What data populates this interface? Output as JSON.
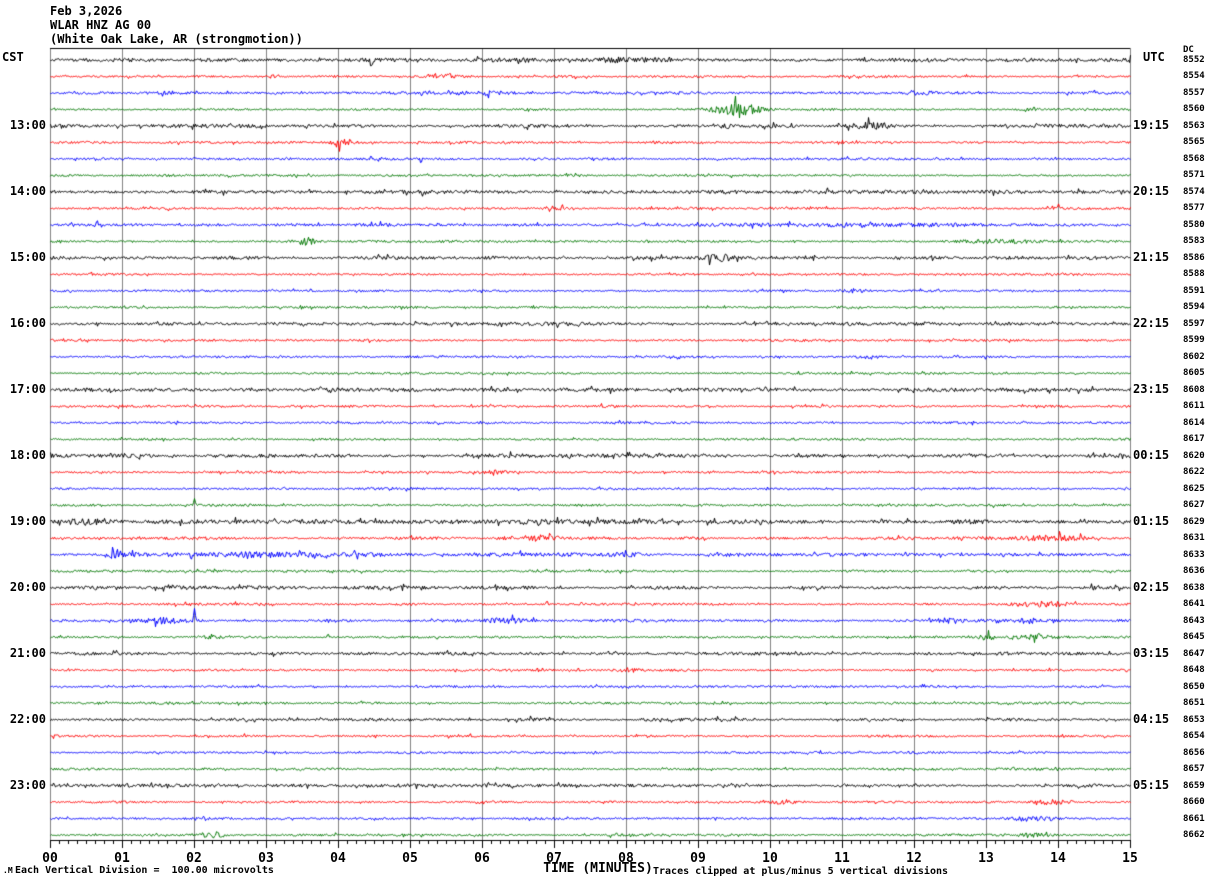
{
  "title": {
    "date": "Feb 3,2026",
    "station": "WLAR HNZ AG 00",
    "location": "(White Oak Lake, AR (strongmotion))"
  },
  "left_axis": {
    "timezone": "CST",
    "hours": [
      "13:00",
      "14:00",
      "15:00",
      "16:00",
      "17:00",
      "18:00",
      "19:00",
      "20:00",
      "21:00",
      "22:00",
      "23:00"
    ]
  },
  "right_axis": {
    "timezone": "UTC",
    "dc_label": "DC",
    "hours": [
      "19:15",
      "20:15",
      "21:15",
      "22:15",
      "23:15",
      "00:15",
      "01:15",
      "02:15",
      "03:15",
      "04:15",
      "05:15"
    ],
    "row_numbers": [
      "8552",
      "8554",
      "8557",
      "8560",
      "8563",
      "8565",
      "8568",
      "8571",
      "8574",
      "8577",
      "8580",
      "8583",
      "8586",
      "8588",
      "8591",
      "8594",
      "8597",
      "8599",
      "8602",
      "8605",
      "8608",
      "8611",
      "8614",
      "8617",
      "8620",
      "8622",
      "8625",
      "8627",
      "8629",
      "8631",
      "8633",
      "8636",
      "8638",
      "8641",
      "8643",
      "8645",
      "8647",
      "8648",
      "8650",
      "8651",
      "8653",
      "8654",
      "8656",
      "8657",
      "8659",
      "8660",
      "8661",
      "8662"
    ],
    "first_hour_label_row": 4,
    "rows_per_hour": 4
  },
  "x_axis": {
    "labels": [
      "00",
      "01",
      "02",
      "03",
      "04",
      "05",
      "06",
      "07",
      "08",
      "09",
      "10",
      "11",
      "12",
      "13",
      "14",
      "15"
    ],
    "title": "TIME (MINUTES)"
  },
  "footer": {
    "corner_mark": ".M",
    "scale_note": "Each Vertical Division =  100.00 microvolts",
    "clip_note": "Traces clipped at plus/minus 5 vertical divisions"
  },
  "chart_data": {
    "type": "line",
    "title": "WLAR HNZ AG 00 helicorder, Feb 3,2026, White Oak Lake, AR (strongmotion)",
    "rows": 48,
    "minutes_per_row": 15,
    "row_interval_minutes": 15,
    "x_tick_subdivisions_per_minute": 8,
    "first_row_time_cst": "12:00",
    "last_row_time_cst": "23:45",
    "trace_color_cycle": [
      "#000000",
      "#ff0000",
      "#0000ff",
      "#007700"
    ],
    "grid_color": "#808080",
    "clip_divisions": 5,
    "microvolts_per_division": 100.0,
    "default_amp": {
      "black": 1.3,
      "colored": 0.9
    },
    "row_amp_overrides": {
      "0": 1.8,
      "2": 1.2,
      "4": 1.4,
      "8": 1.4,
      "10": 1.3,
      "12": 1.3,
      "16": 1.3,
      "20": 1.6,
      "21": 1.1,
      "24": 1.5,
      "28": 1.8,
      "29": 1.2,
      "30": 1.5,
      "32": 1.4,
      "34": 1.2,
      "36": 1.3,
      "40": 1.2,
      "44": 1.3
    },
    "events": [
      {
        "row": 0,
        "type": "spike",
        "minute": 4.45,
        "amp": -14
      },
      {
        "row": 0,
        "type": "burst",
        "minute": 7.8,
        "duration": 0.8,
        "amp": 1.5
      },
      {
        "row": 1,
        "type": "burst",
        "minute": 3.1,
        "duration": 0.3,
        "amp": 1.5
      },
      {
        "row": 1,
        "type": "burst",
        "minute": 5.5,
        "duration": 0.7,
        "amp": 2
      },
      {
        "row": 1,
        "type": "spike",
        "minute": 5.55,
        "amp": 8
      },
      {
        "row": 2,
        "type": "burst",
        "minute": 5.9,
        "duration": 0.7,
        "amp": 1.5
      },
      {
        "row": 2,
        "type": "burst",
        "minute": 12.1,
        "duration": 0.5,
        "amp": 1.5
      },
      {
        "row": 3,
        "type": "burst",
        "minute": 9.55,
        "duration": 0.8,
        "amp": 5.5
      },
      {
        "row": 3,
        "type": "burst",
        "minute": 13.6,
        "duration": 0.3,
        "amp": 2
      },
      {
        "row": 4,
        "type": "burst",
        "minute": 9.4,
        "duration": 0.25,
        "amp": 2
      },
      {
        "row": 4,
        "type": "burst",
        "minute": 11.4,
        "duration": 0.8,
        "amp": 3
      },
      {
        "row": 5,
        "type": "burst",
        "minute": 4.05,
        "duration": 0.35,
        "amp": 3.5
      },
      {
        "row": 6,
        "type": "spike",
        "minute": 4.45,
        "amp": 7
      },
      {
        "row": 6,
        "type": "spike",
        "minute": 5.15,
        "amp": -9
      },
      {
        "row": 9,
        "type": "burst",
        "minute": 7.0,
        "duration": 0.3,
        "amp": 2.5
      },
      {
        "row": 9,
        "type": "spike",
        "minute": 14.0,
        "amp": 4
      },
      {
        "row": 10,
        "type": "spike",
        "minute": 0.65,
        "amp": 9
      },
      {
        "row": 10,
        "type": "burst",
        "minute": 10.6,
        "duration": 3.5,
        "amp": 1
      },
      {
        "row": 11,
        "type": "burst",
        "minute": 3.55,
        "duration": 0.3,
        "amp": 3.5
      },
      {
        "row": 11,
        "type": "burst",
        "minute": 13.2,
        "duration": 1.2,
        "amp": 1.3
      },
      {
        "row": 12,
        "type": "burst",
        "minute": 9.3,
        "duration": 0.5,
        "amp": 3
      },
      {
        "row": 14,
        "type": "burst",
        "minute": 11.2,
        "duration": 0.4,
        "amp": 1.8
      },
      {
        "row": 16,
        "type": "spike",
        "minute": 9.65,
        "amp": 5
      },
      {
        "row": 16,
        "type": "spike",
        "minute": 9.95,
        "amp": 6
      },
      {
        "row": 18,
        "type": "burst",
        "minute": 11.35,
        "duration": 0.35,
        "amp": 2
      },
      {
        "row": 25,
        "type": "burst",
        "minute": 6.2,
        "duration": 0.4,
        "amp": 1.5
      },
      {
        "row": 27,
        "type": "spike",
        "minute": 2.0,
        "amp": 6
      },
      {
        "row": 28,
        "type": "spike",
        "minute": 0.35,
        "amp": -5
      },
      {
        "row": 28,
        "type": "burst",
        "minute": 0.6,
        "duration": 0.8,
        "amp": 2
      },
      {
        "row": 29,
        "type": "burst",
        "minute": 6.7,
        "duration": 1.0,
        "amp": 1.8
      },
      {
        "row": 29,
        "type": "spike",
        "minute": 7.05,
        "amp": 5
      },
      {
        "row": 29,
        "type": "burst",
        "minute": 13.8,
        "duration": 1.4,
        "amp": 1.8
      },
      {
        "row": 29,
        "type": "spike",
        "minute": 14.1,
        "amp": -6
      },
      {
        "row": 30,
        "type": "burst",
        "minute": 0.9,
        "duration": 0.35,
        "amp": 2.5
      },
      {
        "row": 30,
        "type": "burst",
        "minute": 3.0,
        "duration": 1.8,
        "amp": 1.3
      },
      {
        "row": 30,
        "type": "burst",
        "minute": 8.0,
        "duration": 0.5,
        "amp": 1.6
      },
      {
        "row": 33,
        "type": "spike",
        "minute": 6.9,
        "amp": 6
      },
      {
        "row": 33,
        "type": "burst",
        "minute": 13.8,
        "duration": 1.0,
        "amp": 2
      },
      {
        "row": 34,
        "type": "burst",
        "minute": 1.6,
        "duration": 0.7,
        "amp": 2.5
      },
      {
        "row": 34,
        "type": "spike",
        "minute": 2.0,
        "amp": 12
      },
      {
        "row": 34,
        "type": "burst",
        "minute": 6.3,
        "duration": 0.5,
        "amp": 2
      },
      {
        "row": 34,
        "type": "burst",
        "minute": 12.5,
        "duration": 0.4,
        "amp": 2
      },
      {
        "row": 34,
        "type": "burst",
        "minute": 13.6,
        "duration": 0.4,
        "amp": 2
      },
      {
        "row": 35,
        "type": "burst",
        "minute": 2.2,
        "duration": 0.35,
        "amp": 2.5
      },
      {
        "row": 35,
        "type": "spike",
        "minute": 3.85,
        "amp": 6
      },
      {
        "row": 35,
        "type": "burst",
        "minute": 13.0,
        "duration": 0.25,
        "amp": 2.5
      },
      {
        "row": 35,
        "type": "burst",
        "minute": 13.7,
        "duration": 0.7,
        "amp": 1.8
      },
      {
        "row": 37,
        "type": "burst",
        "minute": 8.0,
        "duration": 0.3,
        "amp": 2
      },
      {
        "row": 40,
        "type": "spike",
        "minute": 9.1,
        "amp": 3
      },
      {
        "row": 45,
        "type": "burst",
        "minute": 10.2,
        "duration": 0.3,
        "amp": 2
      },
      {
        "row": 45,
        "type": "burst",
        "minute": 13.9,
        "duration": 0.5,
        "amp": 2.2
      },
      {
        "row": 46,
        "type": "burst",
        "minute": 13.6,
        "duration": 0.6,
        "amp": 2
      },
      {
        "row": 46,
        "type": "spike",
        "minute": 13.9,
        "amp": -5
      },
      {
        "row": 47,
        "type": "burst",
        "minute": 2.25,
        "duration": 0.35,
        "amp": 3
      },
      {
        "row": 47,
        "type": "burst",
        "minute": 13.7,
        "duration": 0.5,
        "amp": 1.5
      }
    ]
  }
}
